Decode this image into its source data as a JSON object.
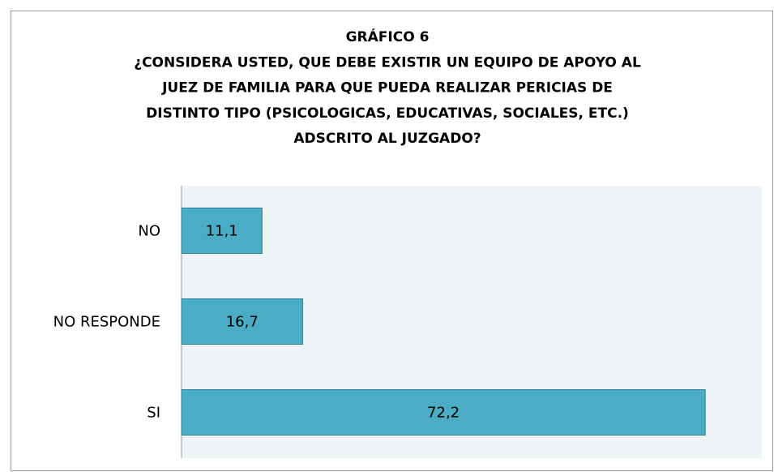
{
  "chart_data": {
    "type": "barh",
    "title": [
      "GRÁFICO 6",
      "¿CONSIDERA USTED, QUE DEBE EXISTIR UN EQUIPO DE APOYO AL",
      "JUEZ DE FAMILIA PARA QUE PUEDA REALIZAR PERICIAS DE",
      "DISTINTO TIPO (PSICOLOGICAS, EDUCATIVAS, SOCIALES, ETC.)",
      "ADSCRITO AL JUZGADO?"
    ],
    "categories": [
      "NO",
      "NO RESPONDE",
      "SI"
    ],
    "values": [
      11.1,
      16.7,
      72.2
    ],
    "value_labels": [
      "11,1",
      "16,7",
      "72,2"
    ],
    "color": "#4bacc6",
    "xlim": [
      0,
      80
    ]
  }
}
